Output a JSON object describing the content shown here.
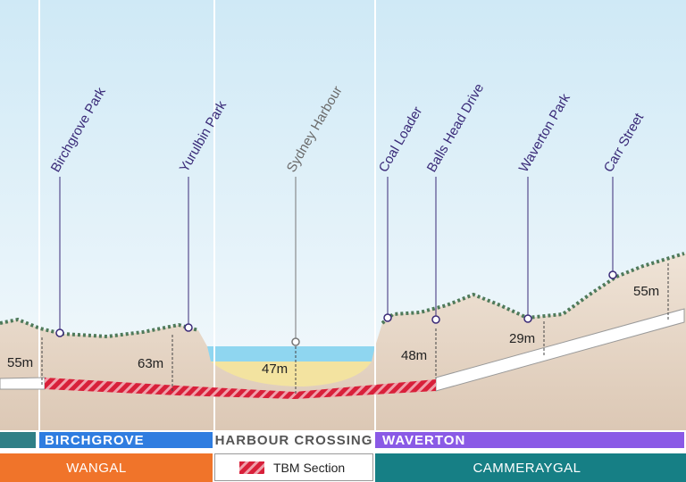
{
  "places": [
    {
      "label": "Birchgrove Park"
    },
    {
      "label": "Yurulbin Park"
    },
    {
      "label": "Sydney Harbour"
    },
    {
      "label": "Coal Loader"
    },
    {
      "label": "Balls Head Drive"
    },
    {
      "label": "Waverton Park"
    },
    {
      "label": "Carr Street"
    }
  ],
  "depths": [
    "55m",
    "63m",
    "47m",
    "48m",
    "29m",
    "55m"
  ],
  "sections": [
    "BIRCHGROVE",
    "HARBOUR CROSSING",
    "WAVERTON"
  ],
  "legend": "TBM Section",
  "lands": [
    "WANGAL",
    "CAMMERAYGAL"
  ]
}
